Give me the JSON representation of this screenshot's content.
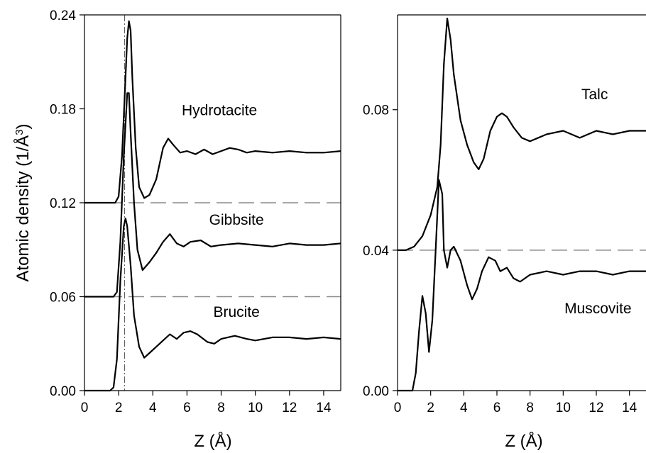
{
  "chart_data": [
    {
      "type": "line",
      "xlabel": "Z (Å)",
      "ylabel_main": "Atomic density (1/Å",
      "ylabel_sup": "3",
      "ylabel_close": ")",
      "xlim": [
        0,
        15
      ],
      "ylim": [
        0,
        0.24
      ],
      "xticks": [
        0,
        2,
        4,
        6,
        8,
        10,
        12,
        14
      ],
      "xtick_labels": [
        "0",
        "2",
        "4",
        "6",
        "8",
        "10",
        "12",
        "14"
      ],
      "yticks": [
        0.0,
        0.06,
        0.12,
        0.18,
        0.24
      ],
      "ytick_labels": [
        "0.00",
        "0.06",
        "0.12",
        "0.18",
        "0.24"
      ],
      "reference_lines": [
        0.06,
        0.12
      ],
      "vertical_reference_x": 2.35,
      "series": [
        {
          "name": "Hydrotacite",
          "label_at": [
            7.9,
            0.176
          ],
          "x": [
            0,
            1.8,
            2.0,
            2.2,
            2.4,
            2.5,
            2.6,
            2.7,
            2.8,
            3.0,
            3.2,
            3.5,
            3.8,
            4.2,
            4.6,
            4.9,
            5.2,
            5.6,
            6.0,
            6.5,
            7.0,
            7.5,
            8.0,
            8.5,
            9.0,
            9.5,
            10.0,
            11.0,
            12.0,
            13.0,
            14.0,
            15.0
          ],
          "y": [
            0.12,
            0.12,
            0.124,
            0.15,
            0.2,
            0.225,
            0.236,
            0.23,
            0.2,
            0.155,
            0.13,
            0.123,
            0.125,
            0.135,
            0.155,
            0.161,
            0.157,
            0.152,
            0.153,
            0.151,
            0.154,
            0.151,
            0.153,
            0.155,
            0.154,
            0.152,
            0.153,
            0.152,
            0.153,
            0.152,
            0.152,
            0.153
          ]
        },
        {
          "name": "Gibbsite",
          "label_at": [
            8.9,
            0.106
          ],
          "x": [
            0,
            1.7,
            1.9,
            2.1,
            2.3,
            2.5,
            2.6,
            2.7,
            2.9,
            3.1,
            3.4,
            3.8,
            4.2,
            4.6,
            5.0,
            5.4,
            5.8,
            6.2,
            6.8,
            7.4,
            8.0,
            9.0,
            10.0,
            11.0,
            12.0,
            13.0,
            14.0,
            15.0
          ],
          "y": [
            0.06,
            0.06,
            0.063,
            0.095,
            0.15,
            0.19,
            0.19,
            0.165,
            0.12,
            0.09,
            0.077,
            0.082,
            0.088,
            0.095,
            0.1,
            0.094,
            0.092,
            0.095,
            0.096,
            0.092,
            0.093,
            0.094,
            0.093,
            0.092,
            0.094,
            0.093,
            0.093,
            0.094
          ]
        },
        {
          "name": "Brucite",
          "label_at": [
            8.9,
            0.047
          ],
          "x": [
            0,
            1.5,
            1.7,
            1.9,
            2.1,
            2.3,
            2.4,
            2.5,
            2.7,
            2.9,
            3.2,
            3.5,
            3.8,
            4.2,
            4.6,
            5.0,
            5.4,
            5.8,
            6.2,
            6.6,
            7.2,
            7.6,
            8.0,
            8.8,
            9.5,
            10.0,
            11.0,
            12.0,
            13.0,
            14.0,
            15.0
          ],
          "y": [
            0.0,
            0.0,
            0.002,
            0.02,
            0.07,
            0.105,
            0.11,
            0.105,
            0.08,
            0.048,
            0.028,
            0.021,
            0.024,
            0.028,
            0.032,
            0.036,
            0.033,
            0.037,
            0.038,
            0.036,
            0.031,
            0.03,
            0.033,
            0.035,
            0.033,
            0.032,
            0.034,
            0.034,
            0.033,
            0.034,
            0.033
          ]
        }
      ]
    },
    {
      "type": "line",
      "xlabel": "Z (Å)",
      "xlim": [
        0,
        15
      ],
      "ylim": [
        0,
        0.107
      ],
      "xticks": [
        0,
        2,
        4,
        6,
        8,
        10,
        12,
        14
      ],
      "xtick_labels": [
        "0",
        "2",
        "4",
        "6",
        "8",
        "10",
        "12",
        "14"
      ],
      "yticks": [
        0.0,
        0.04,
        0.08
      ],
      "ytick_labels": [
        "0.00",
        "0.04",
        "0.08"
      ],
      "reference_lines": [
        0.04
      ],
      "series": [
        {
          "name": "Talc",
          "label_at": [
            11.9,
            0.083
          ],
          "x": [
            0,
            0.5,
            1.0,
            1.5,
            2.0,
            2.4,
            2.6,
            2.8,
            3.0,
            3.2,
            3.4,
            3.8,
            4.2,
            4.6,
            4.9,
            5.2,
            5.6,
            6.0,
            6.3,
            6.6,
            7.0,
            7.5,
            8.0,
            9.0,
            10.0,
            11.0,
            12.0,
            13.0,
            14.0,
            15.0
          ],
          "y": [
            0.04,
            0.04,
            0.041,
            0.044,
            0.05,
            0.058,
            0.07,
            0.093,
            0.106,
            0.1,
            0.09,
            0.077,
            0.07,
            0.065,
            0.063,
            0.066,
            0.074,
            0.078,
            0.079,
            0.078,
            0.075,
            0.072,
            0.071,
            0.073,
            0.074,
            0.072,
            0.074,
            0.073,
            0.074,
            0.074
          ]
        },
        {
          "name": "Muscovite",
          "label_at": [
            12.1,
            0.022
          ],
          "x": [
            0,
            0.9,
            1.1,
            1.3,
            1.5,
            1.7,
            1.9,
            2.1,
            2.3,
            2.5,
            2.7,
            2.8,
            3.0,
            3.2,
            3.4,
            3.8,
            4.2,
            4.5,
            4.8,
            5.1,
            5.5,
            5.9,
            6.2,
            6.6,
            7.0,
            7.4,
            8.0,
            9.0,
            10.0,
            11.0,
            12.0,
            13.0,
            14.0,
            15.0
          ],
          "y": [
            0.0,
            0.0,
            0.005,
            0.017,
            0.027,
            0.022,
            0.011,
            0.02,
            0.04,
            0.06,
            0.056,
            0.04,
            0.035,
            0.04,
            0.041,
            0.037,
            0.03,
            0.026,
            0.029,
            0.034,
            0.038,
            0.037,
            0.034,
            0.035,
            0.032,
            0.031,
            0.033,
            0.034,
            0.033,
            0.034,
            0.034,
            0.033,
            0.034,
            0.034
          ]
        }
      ]
    }
  ]
}
